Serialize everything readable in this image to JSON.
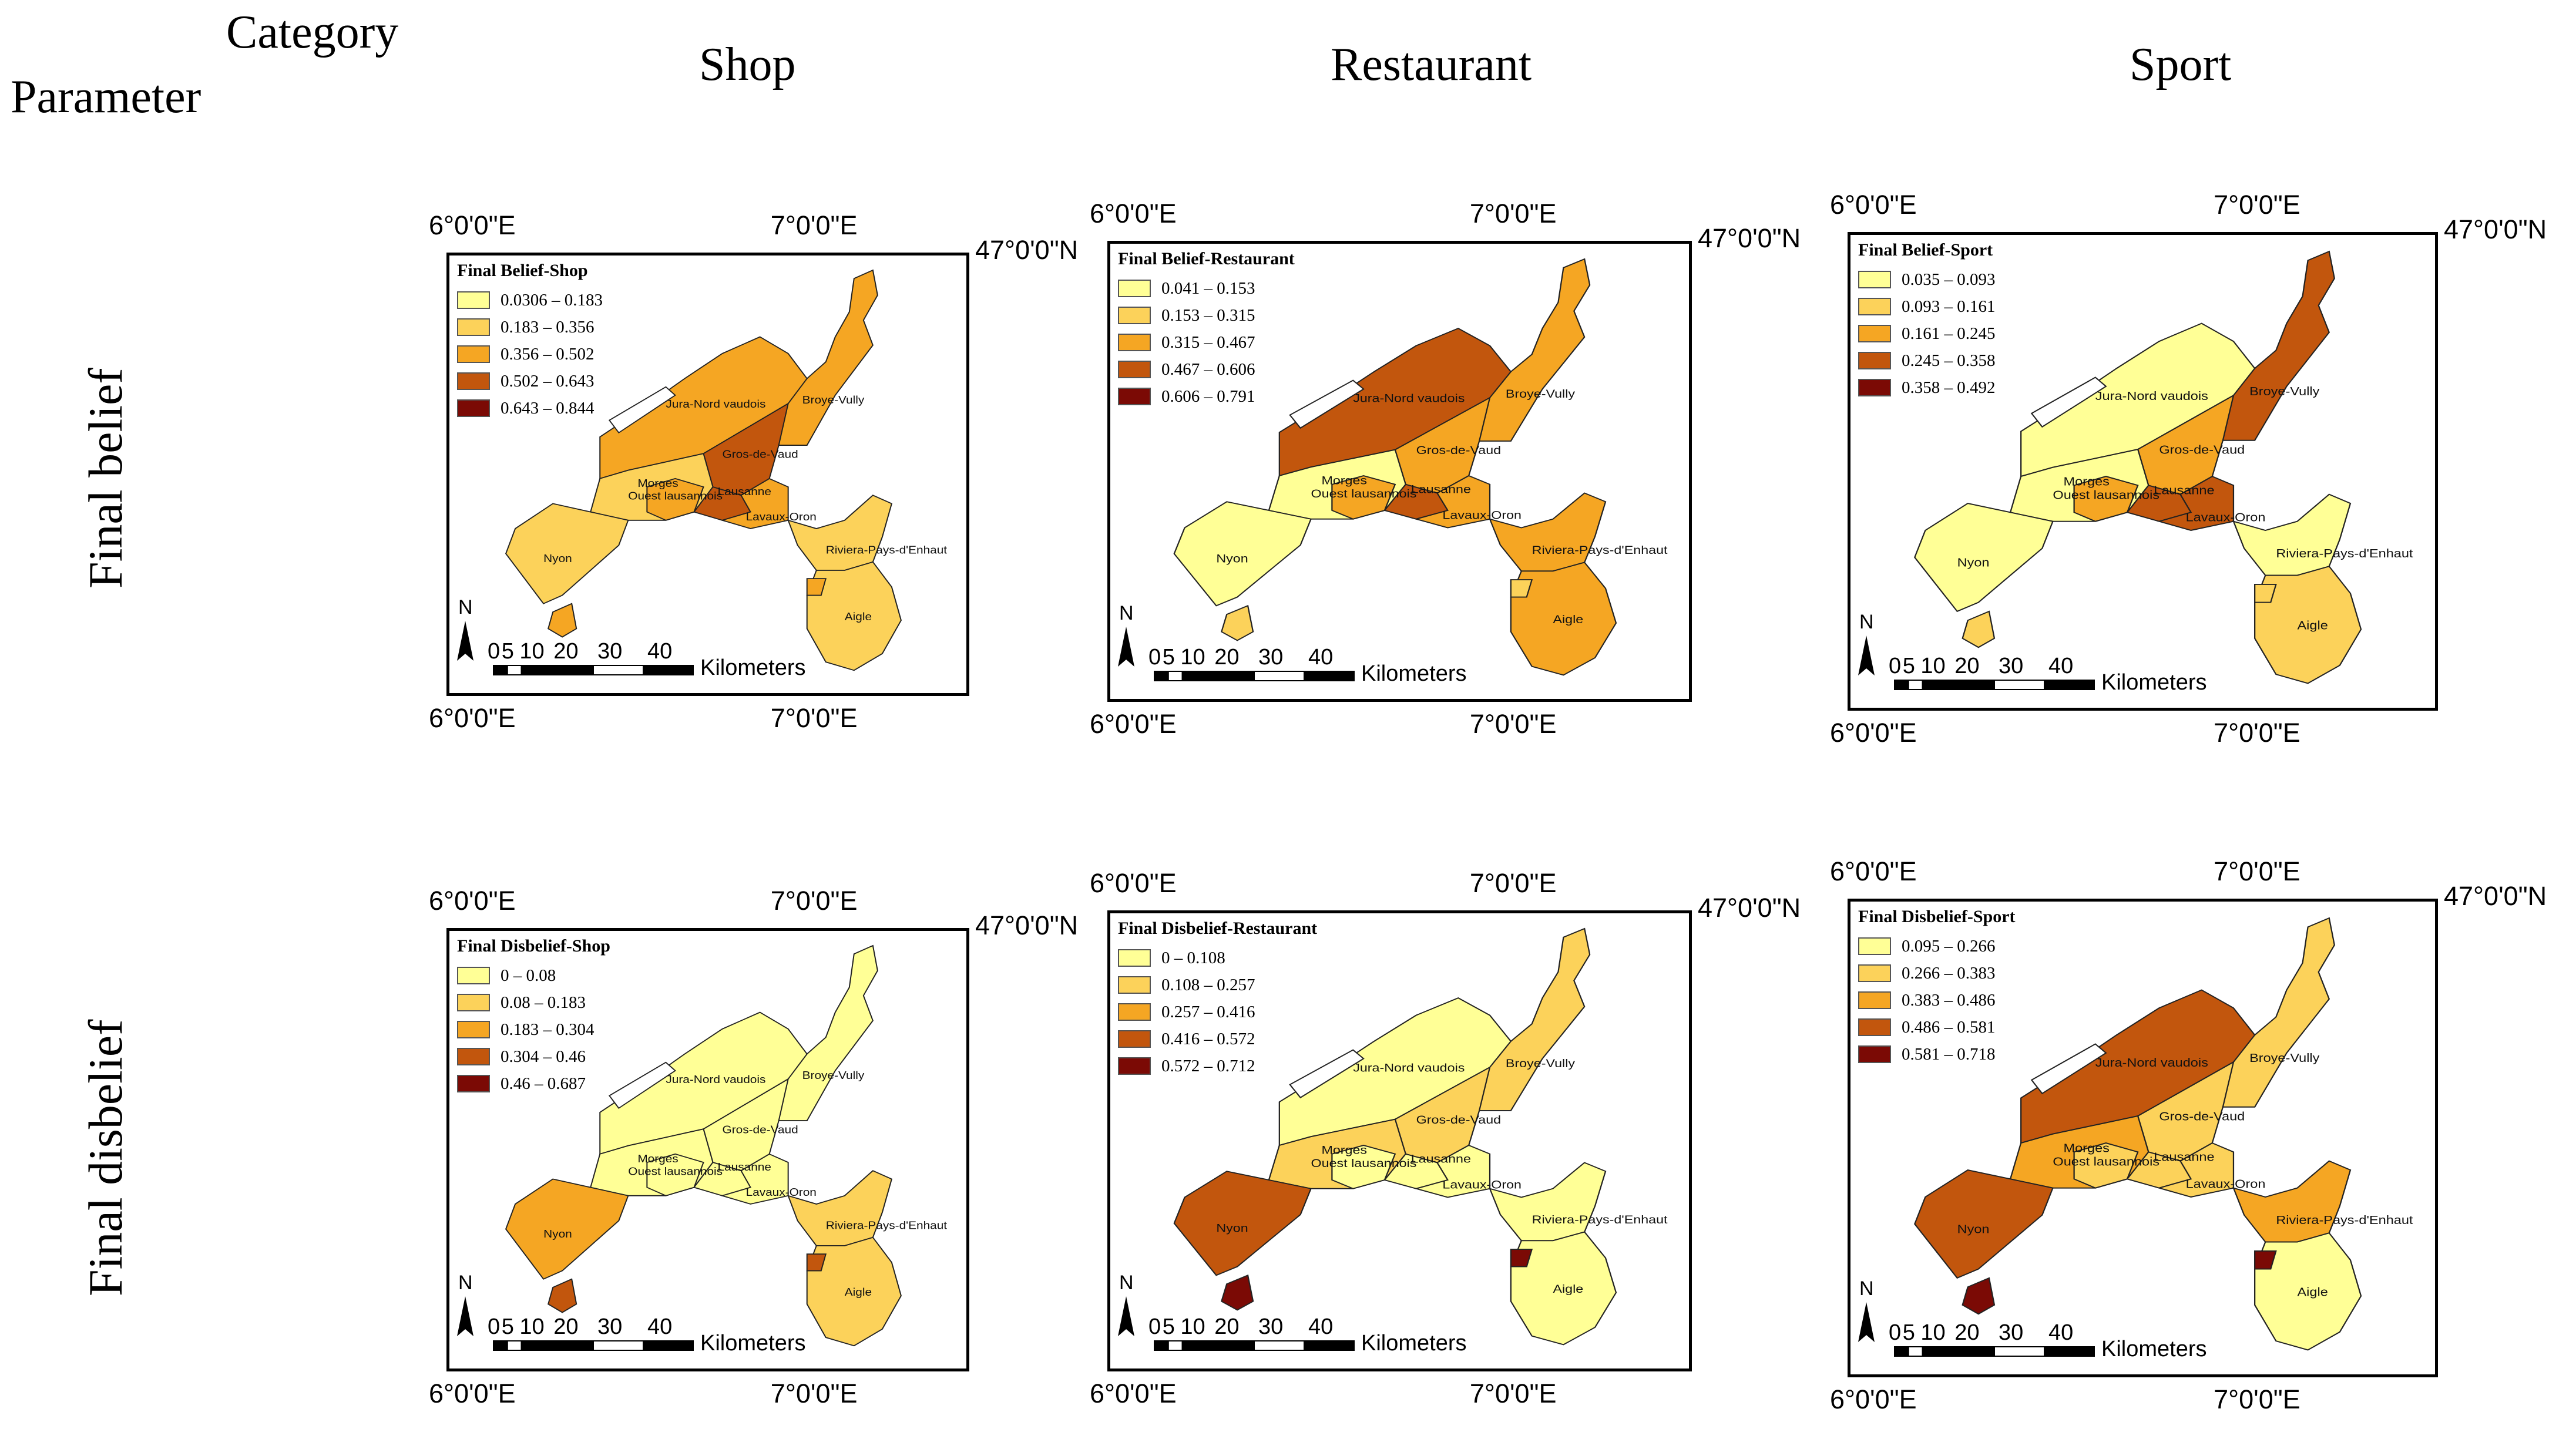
{
  "header": {
    "category_label": "Category",
    "parameter_label": "Parameter",
    "columns": [
      "Shop",
      "Restaurant",
      "Sport"
    ],
    "rows": [
      "Final belief",
      "Final disbelief"
    ]
  },
  "axes": {
    "lon_west": "6°0'0\"E",
    "lon_east": "7°0'0\"E",
    "lat": "47°0'0\"N"
  },
  "scalebar": {
    "ticks": [
      "0",
      "5",
      "10",
      "20",
      "30",
      "40"
    ],
    "unit": "Kilometers"
  },
  "north_arrow": "N",
  "region_labels": {
    "broye_vully": "Broye-Vully",
    "jura_nord": "Jura-Nord vaudois",
    "gros_de_vaud": "Gros-de-Vaud",
    "morges": "Morges",
    "ouest_lausannois": "Ouest lausannois",
    "lausanne": "Lausanne",
    "lavaux_oron": "Lavaux-Oron",
    "nyon": "Nyon",
    "riviera": "Riviera-Pays-d'Enhaut",
    "aigle": "Aigle"
  },
  "colors": {
    "class1": "#ffff96",
    "class2": "#fcd25a",
    "class3": "#f5a623",
    "class4": "#c2560d",
    "class5": "#7b0a05"
  },
  "panels": [
    {
      "id": "belief-shop",
      "legend_title": "Final Belief-Shop",
      "classes": [
        "0.0306 – 0.183",
        "0.183 – 0.356",
        "0.356 – 0.502",
        "0.502 – 0.643",
        "0.643 – 0.844"
      ],
      "fill": [
        3,
        3,
        4,
        2,
        3,
        4,
        3,
        2,
        2,
        2
      ]
    },
    {
      "id": "belief-restaurant",
      "legend_title": "Final Belief-Restaurant",
      "classes": [
        "0.041 – 0.153",
        "0.153 – 0.315",
        "0.315 – 0.467",
        "0.467 – 0.606",
        "0.606 – 0.791"
      ],
      "fill": [
        3,
        4,
        3,
        1,
        3,
        4,
        3,
        1,
        3,
        3
      ]
    },
    {
      "id": "belief-sport",
      "legend_title": "Final Belief-Sport",
      "classes": [
        "0.035 – 0.093",
        "0.093 – 0.161",
        "0.161 – 0.245",
        "0.245 – 0.358",
        "0.358 – 0.492"
      ],
      "fill": [
        4,
        1,
        3,
        1,
        3,
        4,
        4,
        1,
        1,
        2
      ]
    },
    {
      "id": "disbelief-shop",
      "legend_title": "Final Disbelief-Shop",
      "classes": [
        "0 – 0.08",
        "0.08 – 0.183",
        "0.183 – 0.304",
        "0.304 – 0.46",
        "0.46 – 0.687"
      ],
      "fill": [
        1,
        1,
        1,
        1,
        1,
        1,
        1,
        3,
        2,
        2
      ]
    },
    {
      "id": "disbelief-restaurant",
      "legend_title": "Final Disbelief-Restaurant",
      "classes": [
        "0 – 0.108",
        "0.108 – 0.257",
        "0.257 – 0.416",
        "0.416 – 0.572",
        "0.572 – 0.712"
      ],
      "fill": [
        2,
        1,
        2,
        2,
        1,
        1,
        1,
        4,
        1,
        1
      ]
    },
    {
      "id": "disbelief-sport",
      "legend_title": "Final Disbelief-Sport",
      "classes": [
        "0.095 – 0.266",
        "0.266 – 0.383",
        "0.383 – 0.486",
        "0.486 – 0.581",
        "0.581 – 0.718"
      ],
      "fill": [
        2,
        4,
        2,
        3,
        2,
        2,
        2,
        4,
        3,
        1
      ]
    }
  ]
}
